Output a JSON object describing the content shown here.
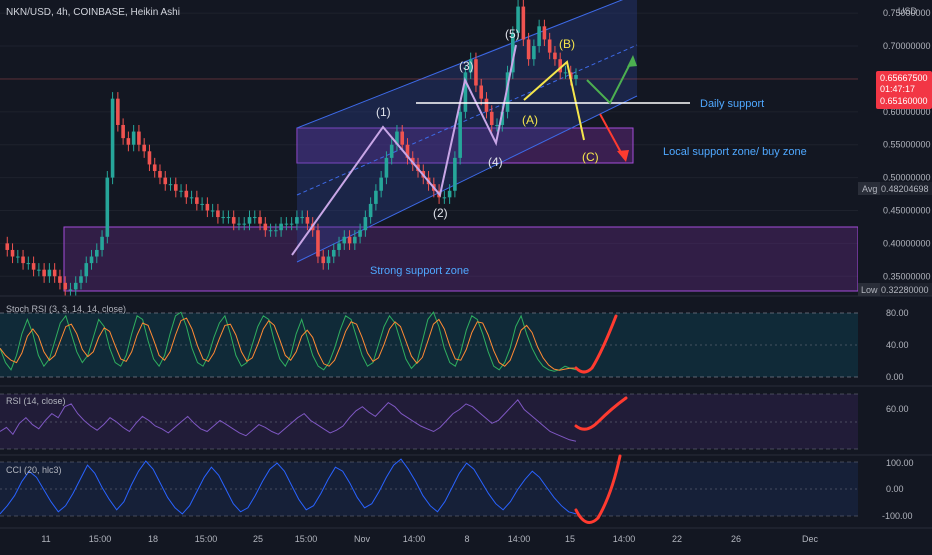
{
  "header": {
    "symbol_line": "NKN/USD, 4h, COINBASE, Heikin Ashi",
    "currency": "USD"
  },
  "price_axis": {
    "ticks": [
      "0.75000000",
      "0.70000000",
      "0.65000000",
      "0.60000000",
      "0.55000000",
      "0.50000000",
      "0.45000000",
      "0.40000000",
      "0.35000000"
    ],
    "last_price": "0.65667500",
    "countdown": "01:47:17",
    "second_price": "0.65160000",
    "avg_label": "Avg",
    "avg_value": "0.48204698",
    "low_label": "Low",
    "low_value": "0.32280000"
  },
  "time_axis": {
    "ticks": [
      "11",
      "15:00",
      "18",
      "15:00",
      "25",
      "15:00",
      "Nov",
      "14:00",
      "8",
      "14:00",
      "15",
      "14:00",
      "22",
      "26",
      "Dec"
    ]
  },
  "annotations": {
    "wave1": "(1)",
    "wave2": "(2)",
    "wave3": "(3)",
    "wave4": "(4)",
    "wave5": "(5)",
    "waveA": "(A)",
    "waveB": "(B)",
    "waveC": "(C)",
    "daily_support": "Daily support",
    "local_zone": "Local support zone/ buy zone",
    "strong_zone": "Strong support zone"
  },
  "panes": {
    "stoch": {
      "label": "Stoch RSI (3, 3, 14, 14, close)",
      "ticks": [
        "80.00",
        "40.00",
        "0.00"
      ]
    },
    "rsi": {
      "label": "RSI (14, close)",
      "ticks": [
        "60.00"
      ]
    },
    "cci": {
      "label": "CCI (20, hlc3)",
      "ticks": [
        "100.00",
        "0.00",
        "-100.00"
      ]
    }
  },
  "colors": {
    "background": "#131722",
    "up_candle": "#26a69a",
    "down_candle": "#ef5350",
    "channel_fill": "#2a3f8f",
    "zone_fill": "#6b2a8a",
    "annotation_yellow": "#f5e64c",
    "annotation_red": "#ff3b30",
    "annotation_green": "#4caf50",
    "stoch_k": "#2fae5f",
    "stoch_d": "#ff8a33",
    "rsi_line": "#7e57c2",
    "cci_line": "#2962ff"
  },
  "chart_data": {
    "type": "candlestick",
    "ylim": [
      0.32,
      0.77
    ],
    "price_path": [
      0.4,
      0.39,
      0.38,
      0.38,
      0.37,
      0.37,
      0.36,
      0.36,
      0.35,
      0.36,
      0.35,
      0.34,
      0.33,
      0.33,
      0.34,
      0.35,
      0.37,
      0.38,
      0.39,
      0.41,
      0.5,
      0.62,
      0.58,
      0.56,
      0.55,
      0.57,
      0.55,
      0.54,
      0.52,
      0.51,
      0.5,
      0.49,
      0.49,
      0.48,
      0.48,
      0.47,
      0.47,
      0.46,
      0.46,
      0.45,
      0.45,
      0.44,
      0.44,
      0.44,
      0.43,
      0.43,
      0.43,
      0.44,
      0.44,
      0.43,
      0.42,
      0.42,
      0.42,
      0.43,
      0.43,
      0.43,
      0.44,
      0.44,
      0.43,
      0.42,
      0.38,
      0.37,
      0.38,
      0.39,
      0.4,
      0.41,
      0.4,
      0.41,
      0.42,
      0.44,
      0.46,
      0.48,
      0.5,
      0.53,
      0.55,
      0.57,
      0.55,
      0.53,
      0.52,
      0.51,
      0.5,
      0.49,
      0.48,
      0.47,
      0.47,
      0.48,
      0.53,
      0.6,
      0.66,
      0.68,
      0.64,
      0.62,
      0.6,
      0.58,
      0.58,
      0.6,
      0.66,
      0.72,
      0.76,
      0.71,
      0.68,
      0.7,
      0.73,
      0.71,
      0.69,
      0.68,
      0.66,
      0.66,
      0.65,
      0.656
    ],
    "stoch_k": [
      40,
      20,
      10,
      30,
      60,
      80,
      60,
      30,
      15,
      25,
      50,
      75,
      85,
      60,
      35,
      20,
      30,
      55,
      80,
      70,
      40,
      20,
      15,
      30,
      60,
      85,
      80,
      50,
      25,
      15,
      30,
      60,
      85,
      90,
      70,
      40,
      20,
      15,
      30,
      55,
      75,
      85,
      60,
      30,
      15,
      20,
      45,
      70,
      85,
      80,
      50,
      25,
      15,
      30,
      60,
      80,
      55,
      30,
      15,
      10,
      20,
      40,
      65,
      85,
      80,
      55,
      30,
      15,
      20,
      45,
      70,
      85,
      75,
      50,
      25,
      12,
      20,
      50,
      80,
      90,
      70,
      40,
      20,
      15,
      35,
      65,
      85,
      80,
      60,
      35,
      15,
      10,
      20,
      40,
      70,
      85,
      60,
      40,
      25,
      15,
      10,
      8,
      10,
      15,
      12,
      10
    ],
    "rsi": [
      42,
      45,
      40,
      48,
      52,
      47,
      44,
      50,
      55,
      52,
      60,
      62,
      55,
      50,
      46,
      43,
      47,
      52,
      49,
      45,
      42,
      48,
      53,
      50,
      46,
      44,
      41,
      45,
      49,
      53,
      48,
      44,
      42,
      46,
      50,
      47,
      44,
      41,
      39,
      43,
      47,
      45,
      42,
      40,
      44,
      48,
      52,
      55,
      50,
      47,
      44,
      41,
      43,
      46,
      52,
      57,
      60,
      56,
      53,
      58,
      63,
      60,
      55,
      52,
      49,
      46,
      44,
      42,
      45,
      50,
      55,
      58,
      62,
      60,
      56,
      52,
      48,
      50,
      55,
      60,
      65,
      58,
      54,
      50,
      46,
      42,
      40,
      38,
      36,
      35
    ],
    "cci": [
      -120,
      -80,
      -30,
      40,
      90,
      60,
      0,
      -60,
      -110,
      -80,
      -20,
      50,
      120,
      80,
      10,
      -50,
      -100,
      -60,
      20,
      90,
      140,
      100,
      30,
      -40,
      -90,
      -120,
      -80,
      -10,
      60,
      110,
      70,
      0,
      -70,
      -110,
      -90,
      -30,
      40,
      100,
      130,
      90,
      20,
      -50,
      -100,
      -80,
      -20,
      50,
      110,
      90,
      30,
      -40,
      -90,
      -70,
      -10,
      60,
      120,
      150,
      100,
      40,
      -30,
      -80,
      -110,
      -60,
      10,
      80,
      130,
      100,
      40,
      -20,
      -70,
      -100,
      -60,
      0,
      50,
      90,
      60,
      10,
      -40,
      -80,
      -110,
      -120
    ]
  }
}
